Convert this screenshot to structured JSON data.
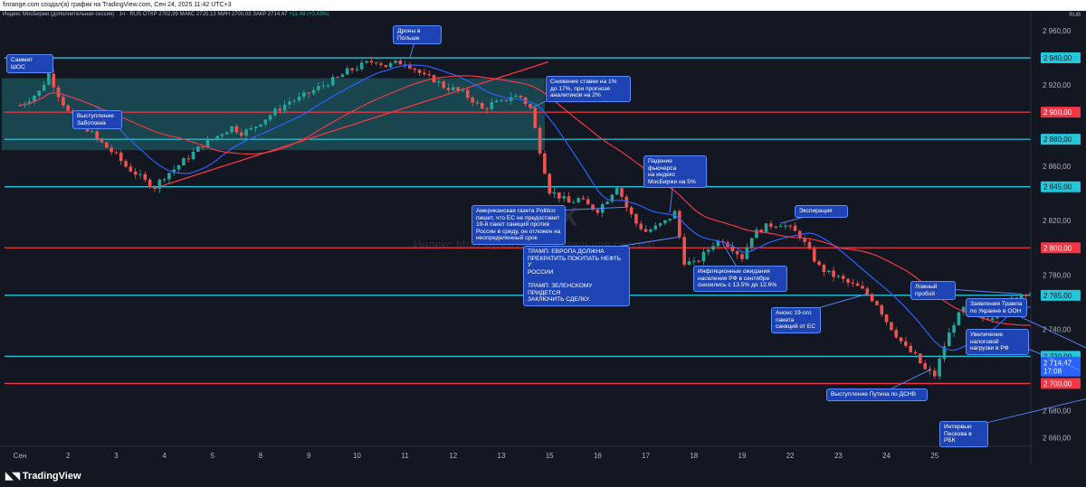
{
  "topbar": "finrange.com создал(а) график на TradingView.com, Сен 24, 2025 11:42 UTC+3",
  "header": {
    "title": "Индекс МосБиржи (дополнительная сессия) · 1ч · RUS",
    "values": "ОТКР 2702,99  МАКС 2720,13  МИН 2700,03  ЗАКР 2714,47",
    "change": "+11,48 (+0,43%)"
  },
  "currency": "RUB",
  "watermark": {
    "ticker": "IMOEX",
    "name": "Индекс МосБиржи (дополнительная сессия)"
  },
  "logo": "TradingView",
  "colors": {
    "bg": "#131722",
    "cyan": "#26c6da",
    "red": "#f23645",
    "up": "#26a69a",
    "down": "#ef5350",
    "ma_fast": "#2962ff",
    "ma_slow": "#f23645",
    "box": "#1d6b73",
    "ann_bg": "#1e44b4"
  },
  "chart_data": {
    "type": "candlestick",
    "ylim": [
      2655,
      2968
    ],
    "y_ticks": [
      "2 960,00",
      "2 940,00",
      "2 920,00",
      "2 900,00",
      "2 880,00",
      "2 860,00",
      "2 845,00",
      "2 820,00",
      "2 800,00",
      "2 780,00",
      "2 765,00",
      "2 740,00",
      "2 720,00",
      "2 700,00",
      "2 680,00",
      "2 660,00"
    ],
    "x_labels": [
      "Сен",
      "2",
      "3",
      "4",
      "5",
      "8",
      "9",
      "10",
      "11",
      "12",
      "13",
      "15",
      "16",
      "17",
      "18",
      "19",
      "22",
      "23",
      "24",
      "25"
    ],
    "price_labels": [
      {
        "text": "2 940,00",
        "value": 2940,
        "color": "cyan"
      },
      {
        "text": "2 900,00",
        "value": 2900,
        "color": "red"
      },
      {
        "text": "2 880,00",
        "value": 2880,
        "color": "cyan"
      },
      {
        "text": "2 845,00",
        "value": 2845,
        "color": "cyan"
      },
      {
        "text": "2 800,00",
        "value": 2800,
        "color": "red"
      },
      {
        "text": "2 765,00",
        "value": 2765,
        "color": "cyan"
      },
      {
        "text": "2 720,00",
        "value": 2720,
        "color": "cyan"
      },
      {
        "text": "2 700,00",
        "value": 2700,
        "color": "red"
      }
    ],
    "last_price": {
      "text": "2 714,47",
      "time": "17:08",
      "value": 2714.47
    },
    "levels": [
      {
        "value": 2940,
        "color": "cyan"
      },
      {
        "value": 2900,
        "color": "red"
      },
      {
        "value": 2880,
        "color": "cyan"
      },
      {
        "value": 2845,
        "color": "cyan"
      },
      {
        "value": 2800,
        "color": "red"
      },
      {
        "value": 2765,
        "color": "cyan"
      },
      {
        "value": 2720,
        "color": "cyan"
      },
      {
        "value": 2700,
        "color": "red"
      }
    ],
    "range_box": {
      "from_day": 0,
      "to_day": 10.9,
      "y_low": 2872,
      "y_high": 2925
    },
    "trendline": [
      [
        2.8,
        2844
      ],
      [
        10.6,
        2937
      ]
    ],
    "close_path": [
      [
        0,
        2905
      ],
      [
        0.4,
        2915
      ],
      [
        0.6,
        2928
      ],
      [
        0.8,
        2913
      ],
      [
        1.0,
        2900
      ],
      [
        1.2,
        2893
      ],
      [
        1.4,
        2888
      ],
      [
        1.6,
        2880
      ],
      [
        1.8,
        2874
      ],
      [
        2.0,
        2868
      ],
      [
        2.2,
        2860
      ],
      [
        2.4,
        2855
      ],
      [
        2.6,
        2849
      ],
      [
        2.8,
        2845
      ],
      [
        3.0,
        2853
      ],
      [
        3.2,
        2858
      ],
      [
        3.4,
        2864
      ],
      [
        3.6,
        2870
      ],
      [
        3.8,
        2876
      ],
      [
        4.0,
        2880
      ],
      [
        4.2,
        2885
      ],
      [
        4.4,
        2889
      ],
      [
        4.6,
        2885
      ],
      [
        4.8,
        2887
      ],
      [
        5.0,
        2893
      ],
      [
        5.2,
        2898
      ],
      [
        5.4,
        2903
      ],
      [
        5.6,
        2908
      ],
      [
        5.8,
        2910
      ],
      [
        6.0,
        2914
      ],
      [
        6.2,
        2918
      ],
      [
        6.4,
        2922
      ],
      [
        6.6,
        2925
      ],
      [
        6.8,
        2930
      ],
      [
        7.0,
        2933
      ],
      [
        7.2,
        2936
      ],
      [
        7.4,
        2938
      ],
      [
        7.6,
        2934
      ],
      [
        7.8,
        2936
      ],
      [
        8.0,
        2937
      ],
      [
        8.2,
        2932
      ],
      [
        8.4,
        2926
      ],
      [
        8.6,
        2924
      ],
      [
        8.8,
        2919
      ],
      [
        9.0,
        2917
      ],
      [
        9.2,
        2914
      ],
      [
        9.4,
        2909
      ],
      [
        9.6,
        2902
      ],
      [
        9.8,
        2906
      ],
      [
        10.0,
        2907
      ],
      [
        10.2,
        2912
      ],
      [
        10.4,
        2911
      ],
      [
        10.6,
        2903
      ],
      [
        10.8,
        2872
      ],
      [
        11.0,
        2842
      ],
      [
        11.2,
        2838
      ],
      [
        11.4,
        2833
      ],
      [
        11.6,
        2836
      ],
      [
        11.8,
        2831
      ],
      [
        12.0,
        2828
      ],
      [
        12.2,
        2836
      ],
      [
        12.4,
        2846
      ],
      [
        12.6,
        2830
      ],
      [
        12.8,
        2818
      ],
      [
        13.0,
        2812
      ],
      [
        13.2,
        2815
      ],
      [
        13.4,
        2819
      ],
      [
        13.6,
        2826
      ],
      [
        13.8,
        2790
      ],
      [
        14.0,
        2788
      ],
      [
        14.2,
        2795
      ],
      [
        14.4,
        2803
      ],
      [
        14.6,
        2806
      ],
      [
        14.8,
        2800
      ],
      [
        15.0,
        2793
      ],
      [
        15.2,
        2809
      ],
      [
        15.4,
        2814
      ],
      [
        15.6,
        2817
      ],
      [
        15.8,
        2818
      ],
      [
        16.0,
        2814
      ],
      [
        16.2,
        2809
      ],
      [
        16.4,
        2797
      ],
      [
        16.6,
        2786
      ],
      [
        16.8,
        2781
      ],
      [
        17.0,
        2778
      ],
      [
        17.2,
        2774
      ],
      [
        17.4,
        2771
      ],
      [
        17.6,
        2766
      ],
      [
        17.8,
        2759
      ],
      [
        18.0,
        2746
      ],
      [
        18.2,
        2736
      ],
      [
        18.4,
        2726
      ],
      [
        18.6,
        2720
      ],
      [
        18.8,
        2710
      ],
      [
        19.0,
        2706
      ],
      [
        19.2,
        2728
      ],
      [
        19.4,
        2745
      ],
      [
        19.6,
        2755
      ],
      [
        19.8,
        2752
      ],
      [
        20.0,
        2748
      ],
      [
        20.2,
        2750
      ],
      [
        20.4,
        2756
      ],
      [
        20.6,
        2762
      ],
      [
        20.8,
        2766
      ],
      [
        21.0,
        2768
      ],
      [
        21.2,
        2758
      ],
      [
        21.4,
        2743
      ],
      [
        21.6,
        2722
      ],
      [
        21.8,
        2705
      ],
      [
        22.0,
        2695
      ],
      [
        22.2,
        2702
      ],
      [
        22.4,
        2714.47
      ]
    ],
    "annotations": [
      {
        "text": "Саммит ШОС"
      },
      {
        "text": "Выступление\nЗаботкина"
      },
      {
        "text": "Дроны в\nПольше"
      },
      {
        "text": "Снижение ставки на 1%\nдо 17%, при прогнозе\nаналитиков на 2%"
      },
      {
        "text": "Американская газета Politico\nпишет, что ЕС не предоставит\n19-й пакет санкций против\nРоссии в среду, он отложен на\nнеопределенный срок"
      },
      {
        "text": "ТРАМП: ЕВРОПА ДОЛЖНА\nПРЕКРАТИТЬ ПОКУПАТЬ НЕФТЬ У\nРОССИИ\n\nТРАМП: ЗЕЛЕНСКОМУ ПРИДЕТСЯ\nЗАКЛЮЧИТЬ СДЕЛКУ."
      },
      {
        "text": "Падение фьючерса\nна индекс\nМосБиржи на 5%"
      },
      {
        "text": "Экспирация"
      },
      {
        "text": "Инфляционные ожидания\nнаселения РФ в сентябре\nснизились с 13.5% до 12.6%"
      },
      {
        "text": "Анонс 19-ого\nпакета\nсанкций от ЕС"
      },
      {
        "text": "Выступление Путина по ДСНВ"
      },
      {
        "text": "Ложный\nпробой"
      },
      {
        "text": "Заявления Трампа\nпо Украине в ООН"
      },
      {
        "text": "Увеличение налоговой\nнагрузки в РФ"
      },
      {
        "text": "Интервью\nПескова в РБК"
      }
    ]
  }
}
